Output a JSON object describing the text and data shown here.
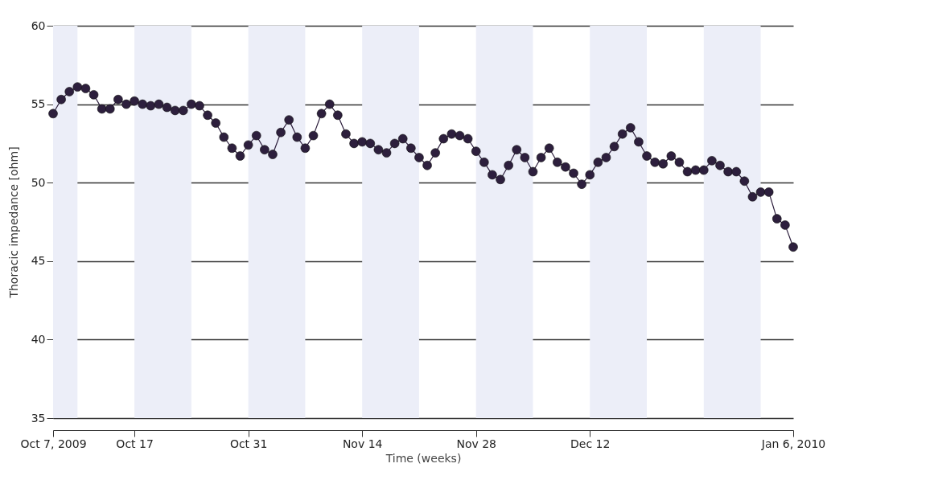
{
  "chart_data": {
    "type": "line",
    "xlabel": "Time (weeks)",
    "ylabel": "Thoracic impedance [ohm]",
    "x": [
      "2009-10-07",
      "2009-10-08",
      "2009-10-09",
      "2009-10-10",
      "2009-10-11",
      "2009-10-12",
      "2009-10-13",
      "2009-10-14",
      "2009-10-15",
      "2009-10-16",
      "2009-10-17",
      "2009-10-18",
      "2009-10-19",
      "2009-10-20",
      "2009-10-21",
      "2009-10-22",
      "2009-10-23",
      "2009-10-24",
      "2009-10-25",
      "2009-10-26",
      "2009-10-27",
      "2009-10-28",
      "2009-10-29",
      "2009-10-30",
      "2009-10-31",
      "2009-11-01",
      "2009-11-02",
      "2009-11-03",
      "2009-11-04",
      "2009-11-05",
      "2009-11-06",
      "2009-11-07",
      "2009-11-08",
      "2009-11-09",
      "2009-11-10",
      "2009-11-11",
      "2009-11-12",
      "2009-11-13",
      "2009-11-14",
      "2009-11-15",
      "2009-11-16",
      "2009-11-17",
      "2009-11-18",
      "2009-11-19",
      "2009-11-20",
      "2009-11-21",
      "2009-11-22",
      "2009-11-23",
      "2009-11-24",
      "2009-11-25",
      "2009-11-26",
      "2009-11-27",
      "2009-11-28",
      "2009-11-29",
      "2009-11-30",
      "2009-12-01",
      "2009-12-02",
      "2009-12-03",
      "2009-12-04",
      "2009-12-05",
      "2009-12-06",
      "2009-12-07",
      "2009-12-08",
      "2009-12-09",
      "2009-12-10",
      "2009-12-11",
      "2009-12-12",
      "2009-12-13",
      "2009-12-14",
      "2009-12-15",
      "2009-12-16",
      "2009-12-17",
      "2009-12-18",
      "2009-12-19",
      "2009-12-20",
      "2009-12-21",
      "2009-12-22",
      "2009-12-23",
      "2009-12-24",
      "2009-12-25",
      "2009-12-26",
      "2009-12-27",
      "2009-12-28",
      "2009-12-29",
      "2009-12-30",
      "2009-12-31",
      "2010-01-01",
      "2010-01-02",
      "2010-01-03",
      "2010-01-04",
      "2010-01-05",
      "2010-01-06"
    ],
    "series": [
      {
        "color": "#2d1f3d",
        "values": [
          54.4,
          55.3,
          55.8,
          56.1,
          56.0,
          55.6,
          54.7,
          54.7,
          55.3,
          55.0,
          55.2,
          55.0,
          54.9,
          55.0,
          54.8,
          54.6,
          54.6,
          55.0,
          54.9,
          54.3,
          53.8,
          52.9,
          52.2,
          51.7,
          52.4,
          53.0,
          52.1,
          51.8,
          53.2,
          54.0,
          52.9,
          52.2,
          53.0,
          54.4,
          55.0,
          54.3,
          53.1,
          52.5,
          52.6,
          52.5,
          52.1,
          51.9,
          52.5,
          52.8,
          52.2,
          51.6,
          51.1,
          51.9,
          52.8,
          53.1,
          53.0,
          52.8,
          52.0,
          51.3,
          50.5,
          50.2,
          51.1,
          52.1,
          51.6,
          50.7,
          51.6,
          52.2,
          51.3,
          51.0,
          50.6,
          49.9,
          50.5,
          51.3,
          51.6,
          52.3,
          53.1,
          53.5,
          52.6,
          51.7,
          51.3,
          51.2,
          51.7,
          51.3,
          50.7,
          50.8,
          50.8,
          51.4,
          51.1,
          50.7,
          50.7,
          50.1,
          49.1,
          49.4,
          49.4,
          47.7,
          47.3,
          45.9
        ]
      }
    ],
    "xlim": [
      "2009-10-07",
      "2010-01-06"
    ],
    "xticks": [
      {
        "value": "2009-10-07",
        "label": "Oct 7, 2009"
      },
      {
        "value": "2009-10-17",
        "label": "Oct 17"
      },
      {
        "value": "2009-10-31",
        "label": "Oct 31"
      },
      {
        "value": "2009-11-14",
        "label": "Nov 14"
      },
      {
        "value": "2009-11-28",
        "label": "Nov 28"
      },
      {
        "value": "2009-12-12",
        "label": "Dec 12"
      },
      {
        "value": "2010-01-06",
        "label": "Jan 6, 2010"
      }
    ],
    "ylim": [
      35,
      60
    ],
    "yticks": [
      35,
      40,
      45,
      50,
      55,
      60
    ],
    "grid": "y",
    "marker": "circle",
    "line_style": "solid",
    "bands": [
      {
        "axis": "x",
        "from": "2009-10-07",
        "to": "2009-10-10",
        "color": "#eceef8"
      },
      {
        "axis": "x",
        "from": "2009-10-17",
        "to": "2009-10-24",
        "color": "#eceef8"
      },
      {
        "axis": "x",
        "from": "2009-10-31",
        "to": "2009-11-07",
        "color": "#eceef8"
      },
      {
        "axis": "x",
        "from": "2009-11-14",
        "to": "2009-11-21",
        "color": "#eceef8"
      },
      {
        "axis": "x",
        "from": "2009-11-28",
        "to": "2009-12-05",
        "color": "#eceef8"
      },
      {
        "axis": "x",
        "from": "2009-12-12",
        "to": "2009-12-19",
        "color": "#eceef8"
      },
      {
        "axis": "x",
        "from": "2009-12-26",
        "to": "2010-01-02",
        "color": "#eceef8"
      }
    ]
  }
}
